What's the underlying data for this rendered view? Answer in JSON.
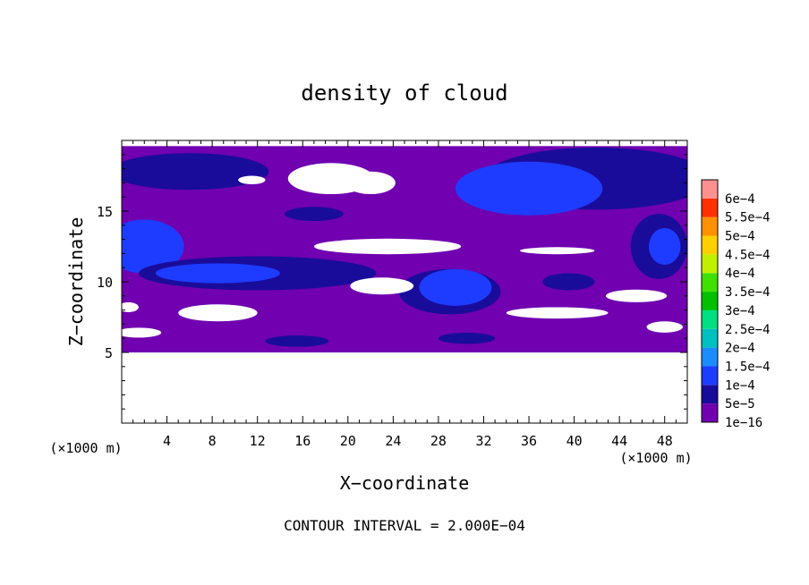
{
  "chart_data": {
    "type": "heatmap",
    "title": "density of cloud",
    "xlabel": "X−coordinate",
    "ylabel": "Z−coordinate",
    "x_unit_left": "(×1000 m)",
    "x_unit_right": "(×1000 m)",
    "footer": "CONTOUR INTERVAL = 2.000E−04",
    "xlim": [
      0,
      50
    ],
    "ylim": [
      0,
      20
    ],
    "x_ticks": [
      4,
      8,
      12,
      16,
      20,
      24,
      28,
      32,
      36,
      40,
      44,
      48
    ],
    "y_ticks": [
      5,
      10,
      15
    ],
    "colorbar": {
      "levels": [
        "1e−16",
        "5e−5",
        "1e−4",
        "1.5e−4",
        "2e−4",
        "2.5e−4",
        "3e−4",
        "3.5e−4",
        "4e−4",
        "4.5e−4",
        "5e−4",
        "5.5e−4",
        "6e−4"
      ],
      "colors": [
        "#7000b0",
        "#1a0c9a",
        "#1e3cff",
        "#1a8cff",
        "#00c0c0",
        "#00e080",
        "#00c000",
        "#40e000",
        "#c0f000",
        "#ffd000",
        "#ff9000",
        "#ff3000",
        "#ff9090"
      ]
    },
    "regions": [
      {
        "level": 0,
        "shape": "band",
        "x": [
          0,
          50
        ],
        "z": [
          5,
          19.6
        ]
      },
      {
        "level": 1,
        "shape": "ellipse",
        "cx": 6,
        "cz": 17.8,
        "rx": 7,
        "rz": 1.3
      },
      {
        "level": 1,
        "shape": "ellipse",
        "cx": 42,
        "cz": 17.3,
        "rx": 10,
        "rz": 2.2
      },
      {
        "level": 2,
        "shape": "ellipse",
        "cx": 36,
        "cz": 16.6,
        "rx": 6.5,
        "rz": 1.9
      },
      {
        "level": 1,
        "shape": "ellipse",
        "cx": 47.5,
        "cz": 12.5,
        "rx": 2.5,
        "rz": 2.3
      },
      {
        "level": 2,
        "shape": "ellipse",
        "cx": 48,
        "cz": 12.5,
        "rx": 1.4,
        "rz": 1.3
      },
      {
        "level": 2,
        "shape": "ellipse",
        "cx": 2,
        "cz": 12.5,
        "rx": 3.5,
        "rz": 1.9
      },
      {
        "level": 1,
        "shape": "ellipse",
        "cx": 12,
        "cz": 10.6,
        "rx": 10.5,
        "rz": 1.2
      },
      {
        "level": 2,
        "shape": "ellipse",
        "cx": 8.5,
        "cz": 10.6,
        "rx": 5.5,
        "rz": 0.7
      },
      {
        "level": 1,
        "shape": "ellipse",
        "cx": 29,
        "cz": 9.3,
        "rx": 4.5,
        "rz": 1.6
      },
      {
        "level": 2,
        "shape": "ellipse",
        "cx": 29.5,
        "cz": 9.6,
        "rx": 3.2,
        "rz": 1.3
      },
      {
        "level": 1,
        "shape": "ellipse",
        "cx": 39.5,
        "cz": 10.0,
        "rx": 2.3,
        "rz": 0.6
      },
      {
        "level": 1,
        "shape": "ellipse",
        "cx": 17,
        "cz": 14.8,
        "rx": 2.6,
        "rz": 0.5
      },
      {
        "level": 1,
        "shape": "ellipse",
        "cx": 15.5,
        "cz": 5.8,
        "rx": 2.8,
        "rz": 0.4
      },
      {
        "level": 1,
        "shape": "ellipse",
        "cx": 30.5,
        "cz": 6.0,
        "rx": 2.5,
        "rz": 0.4
      },
      {
        "level": "clear",
        "shape": "rect",
        "x": [
          0,
          50
        ],
        "z": [
          0,
          5
        ]
      },
      {
        "level": "clear",
        "shape": "ellipse",
        "cx": 18.5,
        "cz": 17.3,
        "rx": 3.8,
        "rz": 1.1
      },
      {
        "level": "clear",
        "shape": "ellipse",
        "cx": 22,
        "cz": 17.0,
        "rx": 2.2,
        "rz": 0.8
      },
      {
        "level": "clear",
        "shape": "ellipse",
        "cx": 11.5,
        "cz": 17.2,
        "rx": 1.2,
        "rz": 0.3
      },
      {
        "level": "clear",
        "shape": "ellipse",
        "cx": 23.5,
        "cz": 12.5,
        "rx": 6.5,
        "rz": 0.55
      },
      {
        "level": "clear",
        "shape": "ellipse",
        "cx": 23,
        "cz": 9.7,
        "rx": 2.8,
        "rz": 0.6
      },
      {
        "level": "clear",
        "shape": "ellipse",
        "cx": 38.5,
        "cz": 12.2,
        "rx": 3.3,
        "rz": 0.25
      },
      {
        "level": "clear",
        "shape": "ellipse",
        "cx": 45.5,
        "cz": 9.0,
        "rx": 2.7,
        "rz": 0.45
      },
      {
        "level": "clear",
        "shape": "ellipse",
        "cx": 38.5,
        "cz": 7.8,
        "rx": 4.5,
        "rz": 0.4
      },
      {
        "level": "clear",
        "shape": "ellipse",
        "cx": 8.5,
        "cz": 7.8,
        "rx": 3.5,
        "rz": 0.6
      },
      {
        "level": "clear",
        "shape": "ellipse",
        "cx": 0.6,
        "cz": 8.2,
        "rx": 0.9,
        "rz": 0.35
      },
      {
        "level": "clear",
        "shape": "ellipse",
        "cx": 1.5,
        "cz": 6.4,
        "rx": 2.0,
        "rz": 0.35
      },
      {
        "level": "clear",
        "shape": "ellipse",
        "cx": 48,
        "cz": 6.8,
        "rx": 1.6,
        "rz": 0.4
      }
    ]
  }
}
